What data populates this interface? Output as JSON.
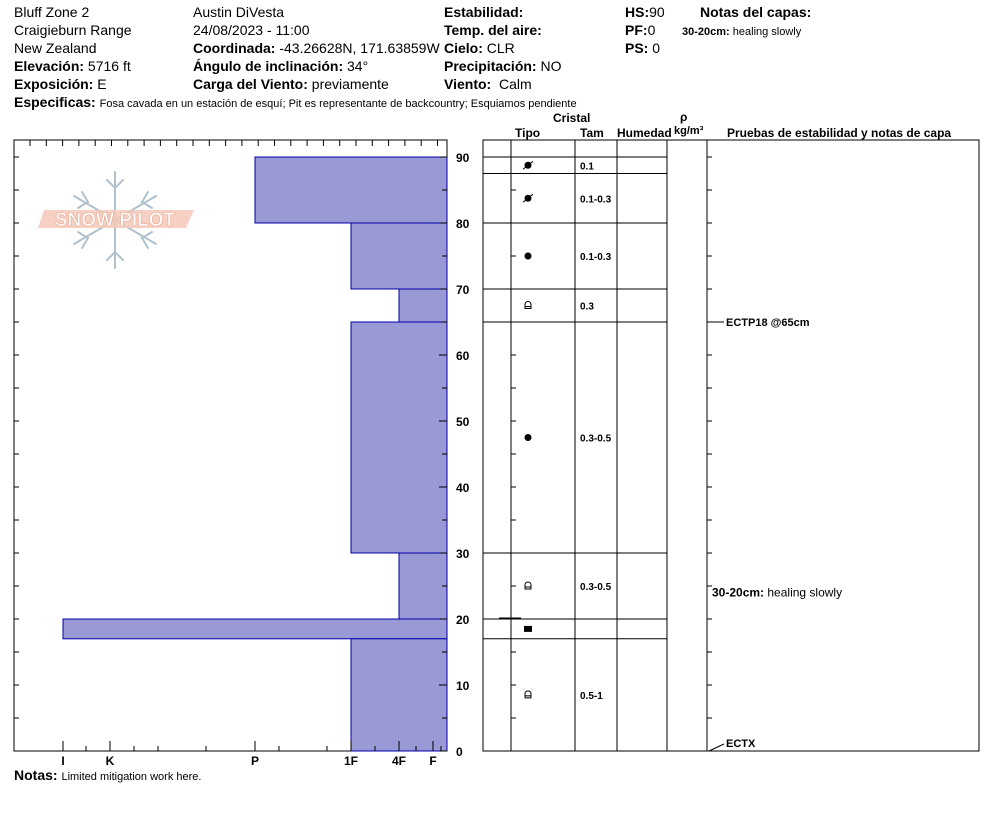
{
  "header": {
    "location": "Bluff Zone 2",
    "range": "Craigieburn Range",
    "country": "New Zealand",
    "elevation_label": "Elevación:",
    "elevation_value": "5716 ft",
    "aspect_label": "Exposición:",
    "aspect_value": "E",
    "observer": "Austin DiVesta",
    "datetime": "24/08/2023 - 11:00",
    "coord_label": "Coordinada:",
    "coord_value": "-43.26628N, 171.63859W",
    "slope_label": "Ángulo de inclinación:",
    "slope_value": "34°",
    "wind_load_label": "Carga del Viento:",
    "wind_load_value": "previamente",
    "stability_label": "Estabilidad:",
    "air_temp_label": "Temp. del aire:",
    "sky_label": "Cielo:",
    "sky_value": "CLR",
    "precip_label": "Precipitación:",
    "precip_value": "NO",
    "wind_label": "Viento:",
    "wind_value": "Calm",
    "hs_label": "HS:",
    "hs_value": "90",
    "pf_label": "PF:",
    "pf_value": "0",
    "ps_label": "PS:",
    "ps_value": "0",
    "layer_notes_title": "Notas del capas:",
    "layer_note_key": "30-20cm:",
    "layer_note_text": "healing slowly",
    "specifics_label": "Especificas:",
    "specifics_value": "Fosa cavada en un estación de esquí; Pit es representante de backcountry; Esquiamos pendiente"
  },
  "logo_text": "SNOW PILOT",
  "columns": {
    "crystal": "Cristal",
    "type": "Tipo",
    "size": "Tam",
    "moisture": "Humedad",
    "rho": "ρ",
    "density_unit": "kg/m³",
    "tests": "Pruebas de estabilidad y notas de capa"
  },
  "notes_label": "Notas:",
  "notes_value": "Limited mitigation work here.",
  "chart_data": {
    "type": "bar",
    "title": "",
    "ylim": [
      0,
      90
    ],
    "y_ticks": [
      "0",
      "10",
      "20",
      "30",
      "40",
      "50",
      "60",
      "70",
      "80",
      "90"
    ],
    "x_ticks": [
      "I",
      "K",
      "P",
      "1F",
      "4F",
      "F"
    ],
    "hardness_scale": {
      "I": 8,
      "K": 7,
      "P": 4,
      "1F": 2,
      "4F": 1,
      "F": 0
    },
    "layers": [
      {
        "top": 90,
        "bottom": 80,
        "hardness": "P",
        "hardness_value": 4,
        "grain": "precip-particles",
        "size": "0.1"
      },
      {
        "top": 80,
        "bottom": 70,
        "hardness": "1F",
        "hardness_value": 2,
        "grain": "decomposing-fragments",
        "size": "0.1-0.3"
      },
      {
        "top": 70,
        "bottom": 65,
        "hardness": "4F",
        "hardness_value": 1,
        "grain": "rounded-grains",
        "size": "0.1-0.3"
      },
      {
        "top": 65,
        "bottom": 30,
        "hardness": "1F",
        "hardness_value": 2,
        "grain": "faceted-crystals",
        "size": "0.3"
      },
      {
        "top": 30,
        "bottom": 20,
        "hardness": "4F",
        "hardness_value": 1,
        "grain": "rounded-grains",
        "size": "0.3-0.5"
      },
      {
        "top": 20,
        "bottom": 17,
        "hardness": "I",
        "hardness_value": 8,
        "grain": "faceted-crystals",
        "size": "0.3-0.5"
      },
      {
        "top": 17,
        "bottom": 0,
        "hardness": "1F",
        "hardness_value": 2,
        "grain": "melt-freeze-crust",
        "size": ""
      }
    ],
    "grain_rows": [
      {
        "top": 90,
        "bottom": 87.5,
        "symbol": "decomposing",
        "size": "0.1"
      },
      {
        "top": 87.5,
        "bottom": 80,
        "symbol": "decomposing",
        "size": "0.1-0.3"
      },
      {
        "top": 80,
        "bottom": 70,
        "symbol": "rounded",
        "size": "0.1-0.3"
      },
      {
        "top": 70,
        "bottom": 65,
        "symbol": "faceted",
        "size": "0.3"
      },
      {
        "top": 65,
        "bottom": 30,
        "symbol": "rounded",
        "size": "0.3-0.5"
      },
      {
        "top": 30,
        "bottom": 20,
        "symbol": "faceted",
        "size": "0.3-0.5"
      },
      {
        "top": 20,
        "bottom": 17,
        "symbol": "crust",
        "size": ""
      },
      {
        "top": 17,
        "bottom": 0,
        "symbol": "faceted",
        "size": "0.5-1"
      }
    ],
    "tests": [
      {
        "depth": 65,
        "label": "ECTP18 @65cm"
      },
      {
        "depth": 0,
        "label": "ECTX"
      }
    ],
    "layer_note": {
      "depth": 24,
      "key": "30-20cm:",
      "text": "healing slowly"
    },
    "bar_color": "#9999d6",
    "bar_stroke": "#0000aa"
  }
}
